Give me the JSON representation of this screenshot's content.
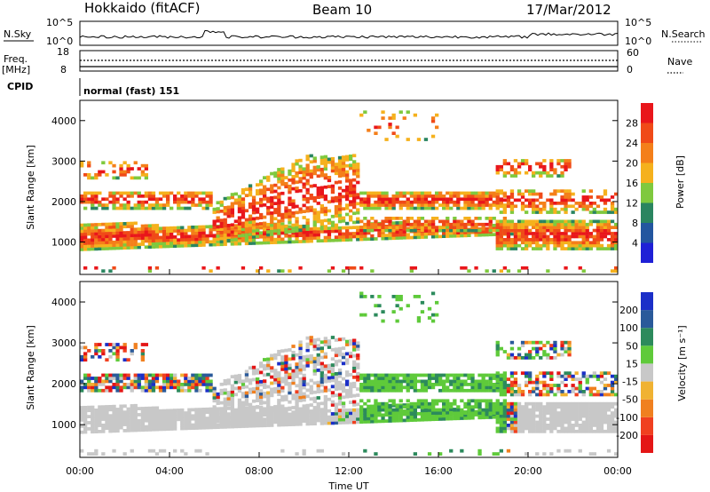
{
  "header": {
    "station": "Hokkaido (fitACF)",
    "beam": "Beam 10",
    "date": "17/Mar/2012"
  },
  "noise_panel": {
    "left_label": "N.Sky",
    "right_label": "N.Search",
    "left_ticks": [
      "10^5",
      "10^0"
    ],
    "right_ticks": [
      "10^5",
      "10^0"
    ]
  },
  "freq_panel": {
    "left_label_top": "Freq.",
    "left_label_bottom": "[MHz]",
    "right_label": "Nave",
    "left_ticks": [
      "18",
      "8"
    ],
    "right_ticks": [
      "60",
      "0"
    ]
  },
  "cpid_panel": {
    "label": "CPID",
    "text": "normal (fast) 151"
  },
  "chart_data": [
    {
      "type": "heatmap",
      "name": "power",
      "ylabel": "Slant Range [km]",
      "ylim": [
        200,
        4500
      ],
      "y_ticks": [
        "1000",
        "2000",
        "3000",
        "4000"
      ],
      "x_ticks": [
        "00:00",
        "04:00",
        "08:00",
        "12:00",
        "16:00",
        "20:00",
        "00:00"
      ],
      "colorbar": {
        "label": "Power [dB]",
        "levels": [
          "4",
          "8",
          "12",
          "16",
          "20",
          "24",
          "28"
        ],
        "colors": [
          "#1f20d6",
          "#23569f",
          "#2a8560",
          "#7fc93e",
          "#f5b11d",
          "#f47f1a",
          "#f04a18",
          "#e9161b"
        ]
      }
    },
    {
      "type": "heatmap",
      "name": "velocity",
      "ylabel": "Slant Range [km]",
      "ylim": [
        200,
        4500
      ],
      "y_ticks": [
        "1000",
        "2000",
        "3000",
        "4000"
      ],
      "x_ticks": [
        "00:00",
        "04:00",
        "08:00",
        "12:00",
        "16:00",
        "20:00",
        "00:00"
      ],
      "xlabel": "Time UT",
      "colorbar": {
        "label": "Velocity [m s⁻¹]",
        "levels": [
          "200",
          "100",
          "50",
          "15",
          "-15",
          "-50",
          "-100",
          "-200"
        ],
        "colors": [
          "#1b2fc8",
          "#2a5a9a",
          "#2c8a5c",
          "#5fca3a",
          "#c8c8c8",
          "#f0b232",
          "#f08020",
          "#f04020",
          "#e41616"
        ]
      }
    }
  ],
  "colors": {
    "ground_scatter": "#c0c0c0"
  }
}
